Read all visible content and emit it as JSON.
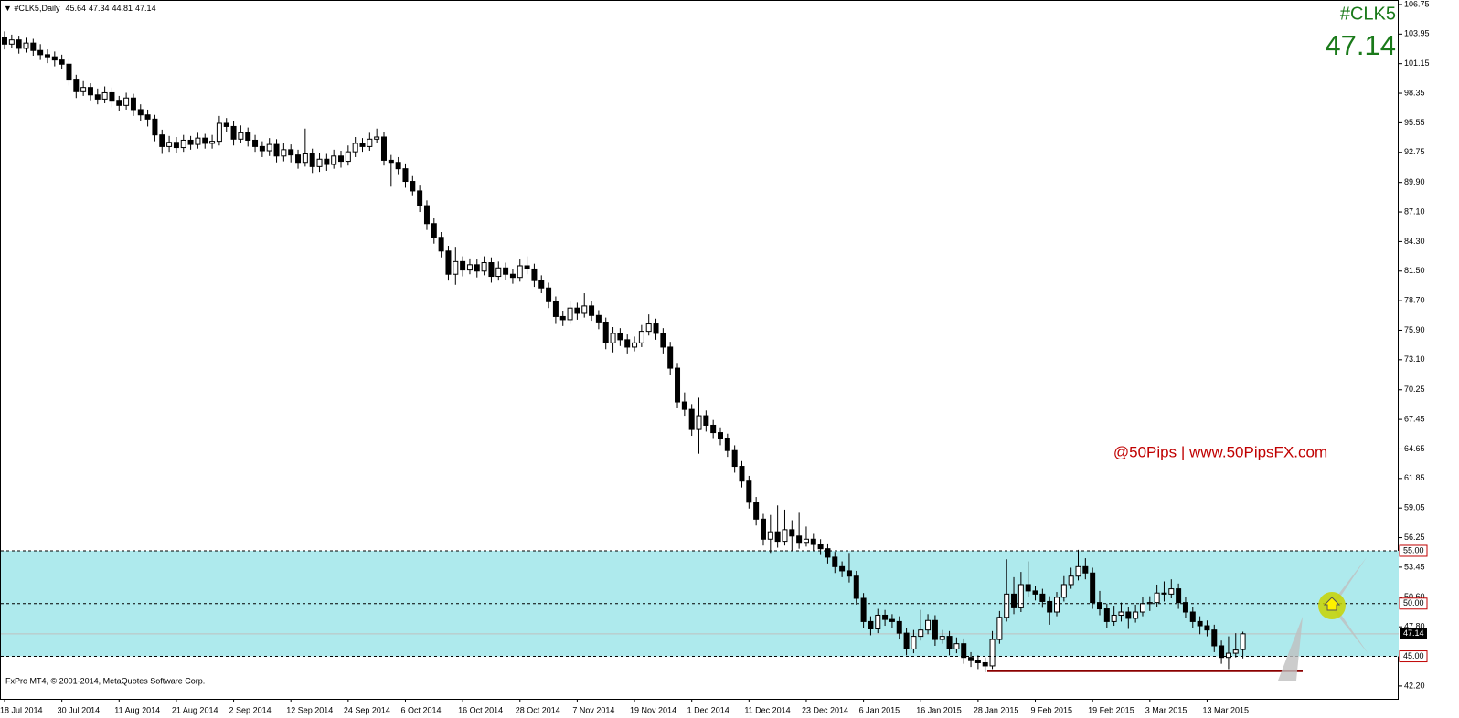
{
  "chart_data": {
    "type": "candlestick",
    "title": "#CLK5,Daily",
    "symbol": "#CLK5",
    "watermark": "@50Pips | www.50PipsFX.com",
    "footer": "FxPro MT4, © 2001-2014, MetaQuotes Software Corp.",
    "up_color": "#ffffff",
    "down_color": "#000000",
    "zone_color": "#aeeaed",
    "support_color": "#8b0000",
    "support_line": 43.6,
    "levels": [
      {
        "value": 55,
        "label": "55.00"
      },
      {
        "value": 50,
        "label": "50.00"
      },
      {
        "value": 45,
        "label": "45.00"
      }
    ],
    "ylim": [
      40.98,
      107.18
    ],
    "yticks": [
      106.75,
      103.95,
      101.15,
      98.35,
      95.55,
      92.75,
      {
        "value": 89.9,
        "label": "89.90"
      },
      {
        "value": 87.1,
        "label": "87.10"
      },
      {
        "value": 84.3,
        "label": "84.30"
      },
      {
        "value": 81.5,
        "label": "81.50"
      },
      {
        "value": 78.7,
        "label": "78.70"
      },
      {
        "value": 75.9,
        "label": "75.90"
      },
      {
        "value": 73.1,
        "label": "73.10"
      },
      70.25,
      67.45,
      64.65,
      61.85,
      59.05,
      56.25,
      53.45,
      {
        "value": 50.6,
        "label": "50.60"
      },
      {
        "value": 47.8,
        "label": "47.80"
      },
      {
        "value": 42.2,
        "label": "42.20"
      }
    ],
    "categories": [
      "18 Jul 2014",
      null,
      null,
      null,
      null,
      null,
      null,
      null,
      "30 Jul 2014",
      null,
      null,
      null,
      null,
      null,
      null,
      null,
      "11 Aug 2014",
      null,
      null,
      null,
      null,
      null,
      null,
      null,
      "21 Aug 2014",
      null,
      null,
      null,
      null,
      null,
      null,
      null,
      "2 Sep 2014",
      null,
      null,
      null,
      null,
      null,
      null,
      null,
      "12 Sep 2014",
      null,
      null,
      null,
      null,
      null,
      null,
      null,
      "24 Sep 2014",
      null,
      null,
      null,
      null,
      null,
      null,
      null,
      "6 Oct 2014",
      null,
      null,
      null,
      null,
      null,
      null,
      null,
      "16 Oct 2014",
      null,
      null,
      null,
      null,
      null,
      null,
      null,
      "28 Oct 2014",
      null,
      null,
      null,
      null,
      null,
      null,
      null,
      "7 Nov 2014",
      null,
      null,
      null,
      null,
      null,
      null,
      null,
      "19 Nov 2014",
      null,
      null,
      null,
      null,
      null,
      null,
      null,
      "1 Dec 2014",
      null,
      null,
      null,
      null,
      null,
      null,
      null,
      "11 Dec 2014",
      null,
      null,
      null,
      null,
      null,
      null,
      null,
      "23 Dec 2014",
      null,
      null,
      null,
      null,
      null,
      null,
      null,
      "6 Jan 2015",
      null,
      null,
      null,
      null,
      null,
      null,
      null,
      "16 Jan 2015",
      null,
      null,
      null,
      null,
      null,
      null,
      null,
      "28 Jan 2015",
      null,
      null,
      null,
      null,
      null,
      null,
      null,
      "9 Feb 2015",
      null,
      null,
      null,
      null,
      null,
      null,
      null,
      "19 Feb 2015",
      null,
      null,
      null,
      null,
      null,
      null,
      null,
      "3 Mar 2015",
      null,
      null,
      null,
      null,
      null,
      null,
      null,
      "13 Mar 2015",
      null,
      null,
      null,
      null,
      null
    ],
    "ohlc": [
      [
        103.6,
        104.2,
        102.5,
        103.0
      ],
      [
        103.0,
        103.9,
        102.6,
        103.4
      ],
      [
        103.4,
        103.8,
        102.1,
        102.6
      ],
      [
        102.6,
        103.6,
        102.2,
        103.1
      ],
      [
        103.1,
        103.5,
        101.9,
        102.4
      ],
      [
        102.4,
        103.0,
        101.5,
        102.0
      ],
      [
        102.0,
        102.5,
        101.2,
        101.8
      ],
      [
        101.8,
        102.3,
        100.9,
        101.5
      ],
      [
        101.5,
        102.0,
        100.6,
        101.1
      ],
      [
        101.1,
        101.6,
        99.1,
        99.6
      ],
      [
        99.6,
        100.1,
        97.9,
        98.5
      ],
      [
        98.5,
        99.5,
        98.1,
        98.9
      ],
      [
        98.9,
        99.3,
        97.6,
        98.2
      ],
      [
        98.2,
        98.8,
        97.3,
        97.8
      ],
      [
        97.8,
        99.0,
        97.4,
        98.4
      ],
      [
        98.4,
        98.9,
        97.0,
        97.6
      ],
      [
        97.6,
        98.1,
        96.7,
        97.2
      ],
      [
        97.2,
        98.4,
        96.8,
        97.9
      ],
      [
        97.9,
        98.3,
        96.2,
        96.8
      ],
      [
        96.8,
        97.3,
        95.7,
        96.3
      ],
      [
        96.3,
        96.8,
        95.2,
        95.9
      ],
      [
        95.9,
        96.3,
        93.8,
        94.4
      ],
      [
        94.4,
        94.9,
        92.6,
        93.3
      ],
      [
        93.3,
        94.3,
        92.8,
        93.7
      ],
      [
        93.7,
        94.2,
        92.7,
        93.2
      ],
      [
        93.2,
        94.4,
        92.8,
        93.9
      ],
      [
        93.9,
        94.3,
        93.0,
        93.5
      ],
      [
        93.5,
        94.6,
        93.1,
        94.1
      ],
      [
        94.1,
        94.5,
        93.1,
        93.6
      ],
      [
        93.6,
        94.4,
        93.1,
        93.8
      ],
      [
        93.8,
        96.2,
        93.4,
        95.5
      ],
      [
        95.5,
        96.0,
        94.7,
        95.2
      ],
      [
        95.2,
        95.7,
        93.4,
        94.0
      ],
      [
        94.0,
        95.3,
        93.6,
        94.6
      ],
      [
        94.6,
        95.1,
        93.3,
        93.9
      ],
      [
        93.9,
        94.4,
        92.8,
        93.3
      ],
      [
        93.3,
        93.8,
        92.3,
        92.9
      ],
      [
        92.9,
        94.1,
        92.4,
        93.5
      ],
      [
        93.5,
        94.0,
        91.8,
        92.4
      ],
      [
        92.4,
        93.6,
        91.9,
        93.0
      ],
      [
        93.0,
        93.5,
        91.8,
        92.5
      ],
      [
        92.5,
        93.0,
        91.2,
        91.8
      ],
      [
        91.8,
        95.0,
        91.4,
        92.6
      ],
      [
        92.6,
        93.1,
        90.8,
        91.4
      ],
      [
        91.4,
        92.7,
        90.9,
        92.1
      ],
      [
        92.1,
        92.6,
        91.0,
        91.6
      ],
      [
        91.6,
        93.0,
        91.2,
        92.4
      ],
      [
        92.4,
        92.9,
        91.3,
        91.9
      ],
      [
        91.9,
        93.4,
        91.5,
        92.8
      ],
      [
        92.8,
        94.2,
        92.3,
        93.6
      ],
      [
        93.6,
        94.1,
        92.8,
        93.3
      ],
      [
        93.3,
        94.6,
        92.9,
        94.0
      ],
      [
        94.0,
        95.0,
        93.6,
        94.2
      ],
      [
        94.2,
        94.7,
        91.5,
        92.0
      ],
      [
        92.0,
        92.5,
        89.5,
        91.8
      ],
      [
        91.8,
        92.3,
        90.6,
        91.2
      ],
      [
        91.2,
        91.7,
        89.4,
        90.0
      ],
      [
        90.0,
        90.5,
        88.6,
        89.1
      ],
      [
        89.1,
        89.6,
        87.1,
        87.7
      ],
      [
        87.7,
        88.2,
        85.4,
        86.0
      ],
      [
        86.0,
        86.5,
        84.1,
        84.7
      ],
      [
        84.7,
        85.2,
        82.8,
        83.4
      ],
      [
        83.4,
        83.9,
        80.6,
        81.2
      ],
      [
        81.2,
        83.8,
        80.2,
        82.4
      ],
      [
        82.4,
        82.9,
        81.0,
        81.6
      ],
      [
        81.6,
        82.7,
        81.2,
        82.1
      ],
      [
        82.1,
        82.6,
        80.9,
        81.5
      ],
      [
        81.5,
        82.9,
        81.1,
        82.3
      ],
      [
        82.3,
        82.8,
        80.4,
        81.0
      ],
      [
        81.0,
        82.4,
        80.6,
        81.8
      ],
      [
        81.8,
        82.3,
        80.7,
        81.2
      ],
      [
        81.2,
        81.7,
        80.3,
        80.9
      ],
      [
        80.9,
        82.6,
        80.5,
        82.0
      ],
      [
        82.0,
        82.9,
        81.2,
        81.7
      ],
      [
        81.7,
        82.2,
        80.0,
        80.6
      ],
      [
        80.6,
        81.1,
        79.4,
        79.9
      ],
      [
        79.9,
        80.4,
        78.0,
        78.6
      ],
      [
        78.6,
        79.1,
        76.5,
        77.2
      ],
      [
        77.2,
        77.7,
        76.3,
        76.9
      ],
      [
        76.9,
        78.7,
        76.5,
        78.0
      ],
      [
        78.0,
        78.5,
        76.9,
        77.5
      ],
      [
        77.5,
        79.4,
        77.1,
        78.2
      ],
      [
        78.2,
        78.7,
        76.8,
        77.3
      ],
      [
        77.3,
        77.8,
        76.0,
        76.6
      ],
      [
        76.6,
        77.1,
        74.1,
        74.7
      ],
      [
        74.7,
        76.2,
        73.8,
        75.6
      ],
      [
        75.6,
        76.1,
        74.4,
        75.0
      ],
      [
        75.0,
        75.5,
        73.7,
        74.3
      ],
      [
        74.3,
        75.3,
        73.9,
        74.7
      ],
      [
        74.7,
        76.4,
        74.3,
        75.8
      ],
      [
        75.8,
        77.4,
        75.4,
        76.5
      ],
      [
        76.5,
        77.0,
        75.0,
        75.6
      ],
      [
        75.6,
        76.1,
        73.7,
        74.3
      ],
      [
        74.3,
        74.8,
        71.7,
        72.3
      ],
      [
        72.3,
        72.8,
        68.5,
        69.1
      ],
      [
        69.1,
        70.0,
        67.8,
        68.4
      ],
      [
        68.4,
        68.9,
        65.9,
        66.5
      ],
      [
        66.5,
        69.5,
        64.2,
        67.8
      ],
      [
        67.8,
        68.3,
        66.3,
        66.9
      ],
      [
        66.9,
        67.4,
        65.6,
        66.2
      ],
      [
        66.2,
        66.7,
        65.0,
        65.6
      ],
      [
        65.6,
        66.1,
        63.9,
        64.5
      ],
      [
        64.5,
        65.0,
        62.4,
        63.0
      ],
      [
        63.0,
        63.5,
        61.0,
        61.6
      ],
      [
        61.6,
        62.1,
        59.0,
        59.6
      ],
      [
        59.6,
        60.1,
        57.4,
        58.0
      ],
      [
        58.0,
        58.5,
        55.5,
        56.1
      ],
      [
        56.1,
        58.4,
        54.8,
        56.8
      ],
      [
        56.8,
        59.3,
        55.3,
        55.9
      ],
      [
        55.9,
        58.9,
        55.5,
        57.0
      ],
      [
        57.0,
        57.9,
        55.0,
        56.4
      ],
      [
        56.4,
        58.6,
        55.2,
        55.8
      ],
      [
        55.8,
        57.3,
        55.4,
        56.1
      ],
      [
        56.1,
        56.6,
        55.0,
        55.6
      ],
      [
        55.6,
        56.1,
        54.6,
        55.2
      ],
      [
        55.2,
        55.7,
        53.8,
        54.4
      ],
      [
        54.4,
        54.9,
        52.9,
        53.5
      ],
      [
        53.5,
        54.0,
        52.5,
        53.1
      ],
      [
        53.1,
        54.8,
        52.0,
        52.6
      ],
      [
        52.6,
        53.1,
        49.9,
        50.5
      ],
      [
        50.5,
        51.0,
        47.7,
        48.3
      ],
      [
        48.3,
        48.8,
        47.0,
        47.6
      ],
      [
        47.6,
        49.5,
        47.2,
        48.9
      ],
      [
        48.9,
        49.4,
        47.9,
        48.5
      ],
      [
        48.5,
        49.0,
        47.7,
        48.3
      ],
      [
        48.3,
        48.8,
        46.6,
        47.2
      ],
      [
        47.2,
        47.7,
        45.1,
        45.7
      ],
      [
        45.7,
        47.5,
        45.3,
        46.9
      ],
      [
        46.9,
        49.4,
        46.5,
        47.5
      ],
      [
        47.5,
        49.0,
        47.1,
        48.4
      ],
      [
        48.4,
        48.9,
        46.0,
        46.6
      ],
      [
        46.6,
        47.5,
        46.2,
        46.9
      ],
      [
        46.9,
        47.4,
        45.1,
        45.7
      ],
      [
        45.7,
        46.8,
        45.3,
        46.2
      ],
      [
        46.2,
        46.7,
        44.3,
        44.9
      ],
      [
        44.9,
        45.4,
        44.0,
        44.6
      ],
      [
        44.6,
        45.1,
        43.8,
        44.4
      ],
      [
        44.4,
        44.9,
        43.5,
        44.1
      ],
      [
        44.1,
        47.4,
        43.8,
        46.6
      ],
      [
        46.6,
        49.3,
        46.2,
        48.7
      ],
      [
        48.7,
        54.2,
        48.3,
        50.9
      ],
      [
        50.9,
        52.5,
        49.0,
        49.6
      ],
      [
        49.6,
        53.0,
        49.2,
        51.8
      ],
      [
        51.8,
        54.0,
        50.6,
        51.2
      ],
      [
        51.2,
        51.7,
        50.3,
        50.9
      ],
      [
        50.9,
        51.4,
        49.6,
        50.2
      ],
      [
        50.2,
        50.7,
        48.0,
        49.2
      ],
      [
        49.2,
        51.1,
        48.8,
        50.6
      ],
      [
        50.6,
        52.6,
        50.2,
        51.8
      ],
      [
        51.8,
        53.4,
        51.4,
        52.6
      ],
      [
        52.6,
        55.1,
        52.2,
        53.5
      ],
      [
        53.5,
        54.3,
        52.3,
        52.9
      ],
      [
        52.9,
        53.4,
        49.5,
        50.1
      ],
      [
        50.1,
        51.2,
        48.9,
        49.5
      ],
      [
        49.5,
        50.0,
        47.7,
        48.3
      ],
      [
        48.3,
        49.8,
        47.9,
        48.9
      ],
      [
        48.9,
        50.1,
        48.3,
        49.2
      ],
      [
        49.2,
        49.7,
        47.6,
        48.6
      ],
      [
        48.6,
        49.9,
        48.2,
        49.2
      ],
      [
        49.2,
        50.6,
        48.8,
        50.0
      ],
      [
        50.0,
        50.7,
        49.3,
        50.1
      ],
      [
        50.1,
        51.8,
        49.7,
        51.0
      ],
      [
        51.0,
        52.1,
        50.2,
        50.9
      ],
      [
        50.9,
        52.3,
        50.5,
        51.4
      ],
      [
        51.4,
        51.9,
        49.5,
        50.1
      ],
      [
        50.1,
        50.6,
        48.6,
        49.2
      ],
      [
        49.2,
        49.7,
        47.7,
        48.3
      ],
      [
        48.3,
        48.8,
        47.1,
        47.9
      ],
      [
        47.9,
        48.4,
        46.9,
        47.5
      ],
      [
        47.5,
        48.0,
        45.4,
        46.0
      ],
      [
        46.0,
        46.5,
        44.3,
        44.9
      ],
      [
        44.9,
        46.9,
        43.8,
        45.3
      ],
      [
        45.3,
        47.2,
        44.9,
        45.6
      ],
      [
        45.64,
        47.34,
        44.81,
        47.14
      ]
    ]
  }
}
